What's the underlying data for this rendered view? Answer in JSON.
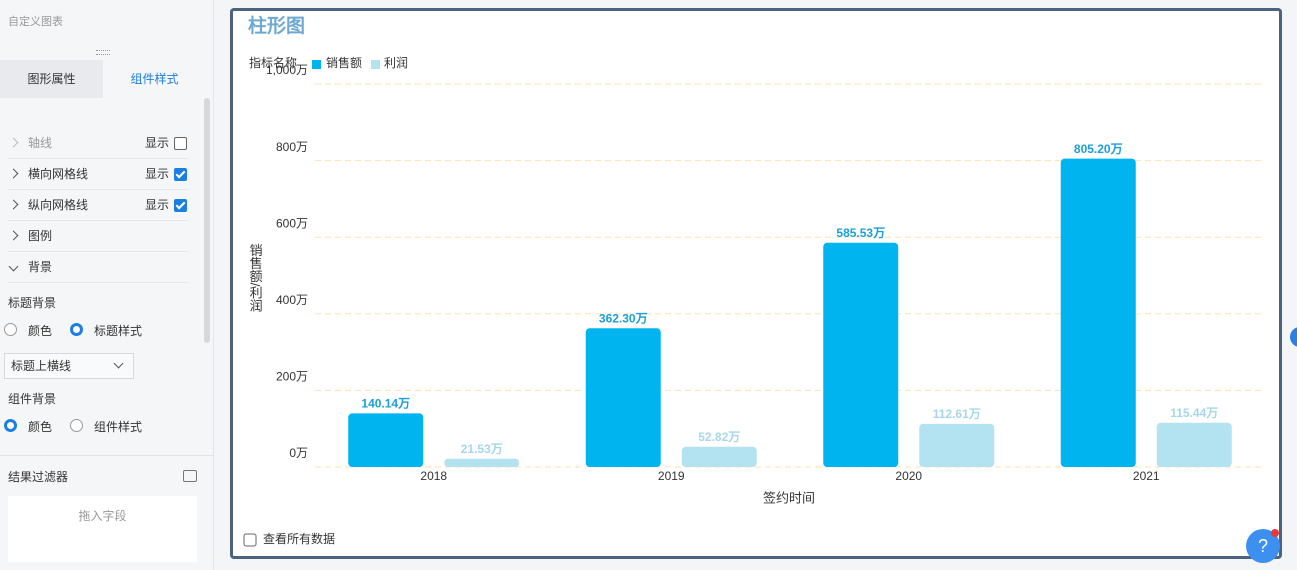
{
  "sidebar": {
    "title": "自定义图表",
    "tabs": [
      "图形属性",
      "组件样式"
    ],
    "active_tab": 1,
    "sections": [
      {
        "label": "轴线",
        "toggle": "显示",
        "checked": false
      },
      {
        "label": "横向网格线",
        "toggle": "显示",
        "checked": true
      },
      {
        "label": "纵向网格线",
        "toggle": "显示",
        "checked": true
      },
      {
        "label": "图例"
      },
      {
        "label": "背景"
      }
    ],
    "title_background": {
      "label": "标题背景",
      "options": [
        "颜色",
        "标题样式"
      ],
      "selected": 1,
      "line_style": "标题上横线"
    },
    "component_background": {
      "label": "组件背景",
      "options": [
        "颜色",
        "组件样式"
      ],
      "selected": 0
    },
    "filter": {
      "title": "结果过滤器",
      "placeholder": "拖入字段"
    }
  },
  "view_all": "查看所有数据",
  "help": "?",
  "chart_data": {
    "type": "bar",
    "title": "柱形图",
    "legend_title": "指标名称",
    "categories": [
      "2018",
      "2019",
      "2020",
      "2021"
    ],
    "series": [
      {
        "name": "销售额",
        "color": "#00b4ef",
        "label_color": "#1a9fd6",
        "values": [
          140.14,
          362.3,
          585.53,
          805.2
        ],
        "value_labels": [
          "140.14万",
          "362.30万",
          "585.53万",
          "805.20万"
        ]
      },
      {
        "name": "利润",
        "color": "#b3e3f0",
        "label_color": "#a6d7e8",
        "values": [
          21.53,
          52.82,
          112.61,
          115.44
        ],
        "value_labels": [
          "21.53万",
          "52.82万",
          "112.61万",
          "115.44万"
        ]
      }
    ],
    "ylim": [
      0,
      1000
    ],
    "yticks": [
      {
        "value": 0,
        "label": "0万"
      },
      {
        "value": 200,
        "label": "200万"
      },
      {
        "value": 400,
        "label": "400万"
      },
      {
        "value": 600,
        "label": "600万"
      },
      {
        "value": 800,
        "label": "800万"
      },
      {
        "value": 1000,
        "label": "1,000万"
      }
    ],
    "x_label": "签约时间",
    "y_label": "销售额/利润",
    "grid": true
  }
}
